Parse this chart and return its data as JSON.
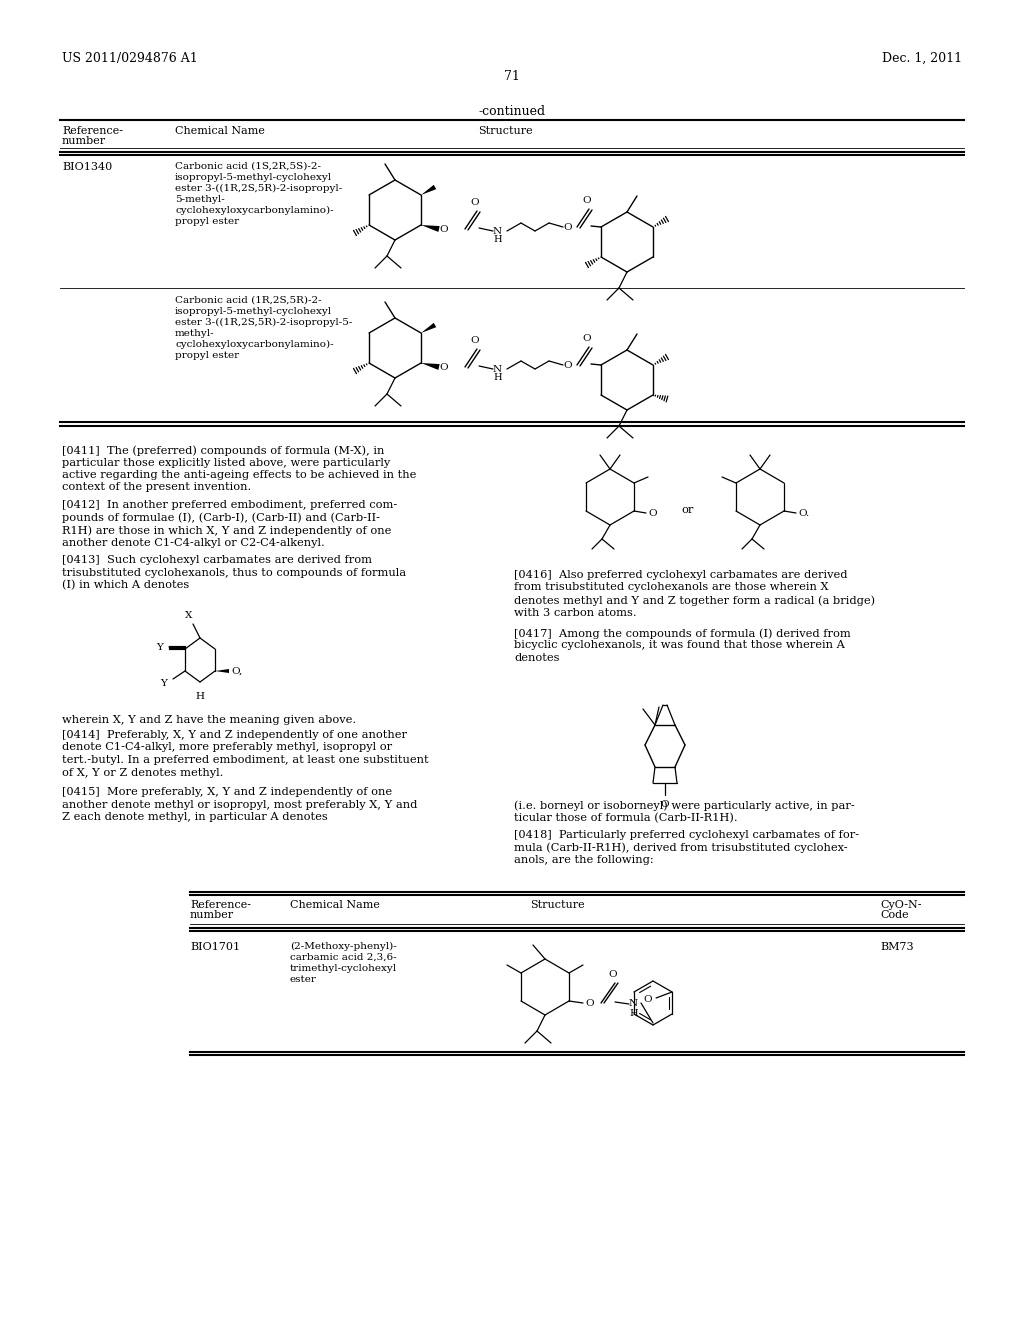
{
  "bg_color": "#ffffff",
  "header_left": "US 2011/0294876 A1",
  "header_right": "Dec. 1, 2011",
  "page_number": "71"
}
